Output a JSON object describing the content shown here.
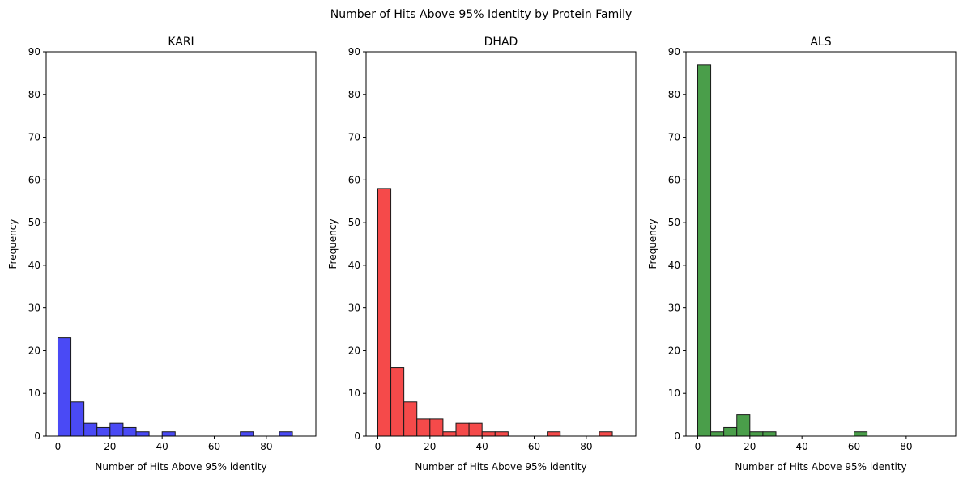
{
  "figure": {
    "suptitle": "Number of Hits Above 95% Identity by Protein Family"
  },
  "chart_data": [
    {
      "type": "bar",
      "title": "KARI",
      "xlabel": "Number of Hits Above 95% identity",
      "ylabel": "Frequency",
      "xlim": [
        -4.5,
        99
      ],
      "ylim": [
        0,
        90
      ],
      "xticks": [
        0,
        20,
        40,
        60,
        80
      ],
      "yticks": [
        0,
        10,
        20,
        30,
        40,
        50,
        60,
        70,
        80,
        90
      ],
      "color": "#4a4af5",
      "edgecolor": "#1a1a1a",
      "bin_edges": [
        0,
        5,
        10,
        15,
        20,
        25,
        30,
        35,
        40,
        45,
        50,
        55,
        60,
        65,
        70,
        75,
        80,
        85,
        90
      ],
      "values": [
        23,
        8,
        3,
        2,
        3,
        2,
        1,
        0,
        1,
        0,
        0,
        0,
        0,
        0,
        1,
        0,
        0,
        1
      ],
      "grid": false,
      "legend": "none"
    },
    {
      "type": "bar",
      "title": "DHAD",
      "xlabel": "Number of Hits Above 95% identity",
      "ylabel": "Frequency",
      "xlim": [
        -4.5,
        99
      ],
      "ylim": [
        0,
        90
      ],
      "xticks": [
        0,
        20,
        40,
        60,
        80
      ],
      "yticks": [
        0,
        10,
        20,
        30,
        40,
        50,
        60,
        70,
        80,
        90
      ],
      "color": "#f54a4a",
      "edgecolor": "#1a1a1a",
      "bin_edges": [
        0,
        5,
        10,
        15,
        20,
        25,
        30,
        35,
        40,
        45,
        50,
        55,
        60,
        65,
        70,
        75,
        80,
        85,
        90
      ],
      "values": [
        58,
        16,
        8,
        4,
        4,
        1,
        3,
        3,
        1,
        1,
        0,
        0,
        0,
        1,
        0,
        0,
        0,
        1
      ],
      "grid": false,
      "legend": "none"
    },
    {
      "type": "bar",
      "title": "ALS",
      "xlabel": "Number of Hits Above 95% identity",
      "ylabel": "Frequency",
      "xlim": [
        -4.5,
        99
      ],
      "ylim": [
        0,
        90
      ],
      "xticks": [
        0,
        20,
        40,
        60,
        80
      ],
      "yticks": [
        0,
        10,
        20,
        30,
        40,
        50,
        60,
        70,
        80,
        90
      ],
      "color": "#4a9e4a",
      "edgecolor": "#1a1a1a",
      "bin_edges": [
        0,
        5,
        10,
        15,
        20,
        25,
        30,
        35,
        40,
        45,
        50,
        55,
        60,
        65,
        70,
        75,
        80,
        85,
        90,
        95
      ],
      "values": [
        87,
        1,
        2,
        5,
        1,
        1,
        0,
        0,
        0,
        0,
        0,
        0,
        1,
        0,
        0,
        0,
        0,
        0,
        0
      ],
      "grid": false,
      "legend": "none"
    }
  ]
}
